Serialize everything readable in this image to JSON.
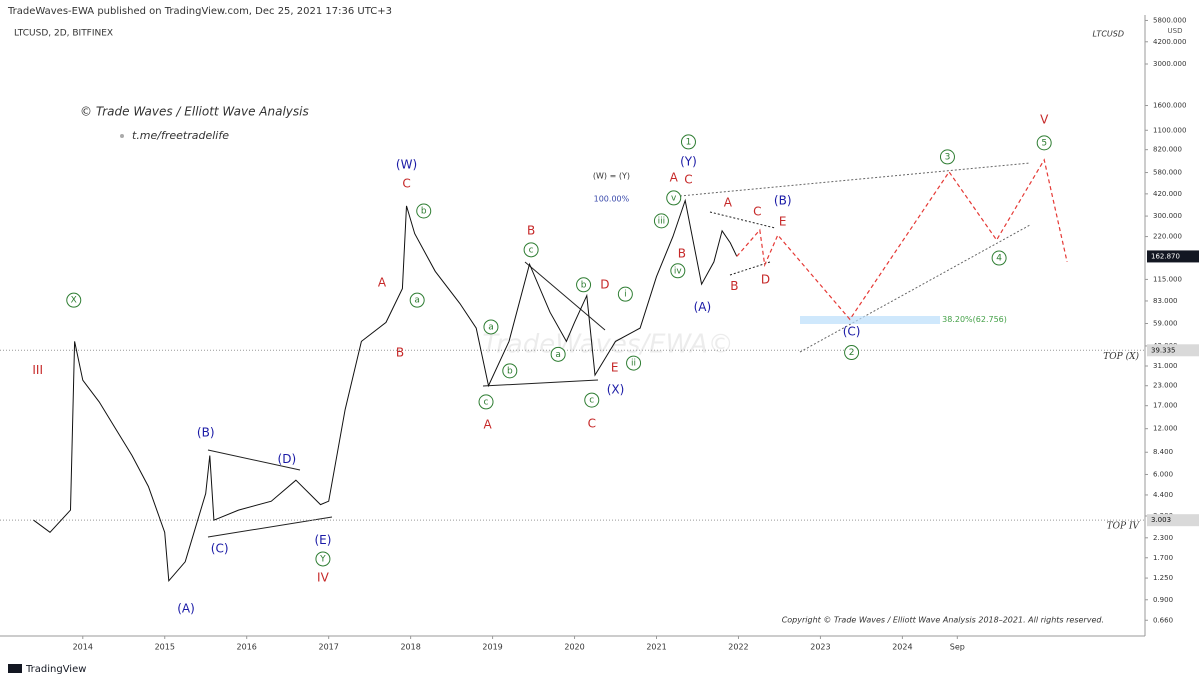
{
  "header": {
    "published": "TradeWaves-EWA published on TradingView.com, Dec 25, 2021 17:36 UTC+3",
    "footer_logo": "TradingView"
  },
  "chart_data": {
    "type": "line",
    "symbol": "LTCUSD, 2D, BITFINEX",
    "symbol_short": "LTCUSD",
    "unit": "USD",
    "credit": "© Trade Waves / Elliott Wave Analysis",
    "link": "t.me/freetradelife",
    "watermark": "TradeWaves/EWA©",
    "copyright": "Copyright © Trade Waves / Elliott Wave Analysis 2018–2021. All rights reserved.",
    "log_scale": true,
    "grid": false,
    "xlim": [
      2012.99,
      2026.96
    ],
    "xticks": [
      2014,
      2015,
      2016,
      2017,
      2018,
      2019,
      2020,
      2021,
      2022,
      2023,
      2024,
      {
        "value": 2024.67,
        "label": "Sep"
      }
    ],
    "ylim": [
      0.52,
      6300
    ],
    "yticks": [
      {
        "value": 5800,
        "label": "5800.000"
      },
      {
        "value": 4200,
        "label": "4200.000"
      },
      {
        "value": 3000,
        "label": "3000.000"
      },
      {
        "value": 1600,
        "label": "1600.000"
      },
      {
        "value": 1100,
        "label": "1100.000"
      },
      {
        "value": 820,
        "label": "820.000"
      },
      {
        "value": 580,
        "label": "580.000"
      },
      {
        "value": 420,
        "label": "420.000"
      },
      {
        "value": 300,
        "label": "300.000"
      },
      {
        "value": 220,
        "label": "220.000"
      },
      {
        "value": 115,
        "label": "115.000"
      },
      {
        "value": 83,
        "label": "83.000"
      },
      {
        "value": 59,
        "label": "59.000"
      },
      {
        "value": 42,
        "label": "42.000"
      },
      {
        "value": 31,
        "label": "31.000"
      },
      {
        "value": 23,
        "label": "23.000"
      },
      {
        "value": 17,
        "label": "17.000"
      },
      {
        "value": 12,
        "label": "12.000"
      },
      {
        "value": 8.4,
        "label": "8.400"
      },
      {
        "value": 6,
        "label": "6.000"
      },
      {
        "value": 4.4,
        "label": "4.400"
      },
      {
        "value": 3.2,
        "label": "3.200"
      },
      {
        "value": 2.3,
        "label": "2.300"
      },
      {
        "value": 1.7,
        "label": "1.700"
      },
      {
        "value": 1.25,
        "label": "1.250"
      },
      {
        "value": 0.9,
        "label": "0.900"
      },
      {
        "value": 0.66,
        "label": "0.660"
      }
    ],
    "series": [
      {
        "color": "#111111",
        "dash": false,
        "x": [
          2013.4,
          2013.6,
          2013.85,
          2013.9,
          2014.0,
          2014.2,
          2014.4,
          2014.6,
          2014.8,
          2015.0,
          2015.05,
          2015.25,
          2015.5,
          2015.55,
          2015.6,
          2015.9,
          2016.3,
          2016.6,
          2016.9,
          2017.0,
          2017.2,
          2017.4,
          2017.7,
          2017.9,
          2017.95,
          2018.05,
          2018.3,
          2018.6,
          2018.8,
          2018.95,
          2019.2,
          2019.45,
          2019.7,
          2019.9,
          2020.0,
          2020.15,
          2020.25,
          2020.5,
          2020.8,
          2021.0,
          2021.2,
          2021.35,
          2021.55,
          2021.7,
          2021.8,
          2021.9,
          2021.98
        ],
        "values": [
          3.0,
          2.5,
          3.5,
          45,
          25,
          18,
          12,
          8,
          5,
          2.5,
          1.2,
          1.6,
          4.5,
          8,
          3,
          3.5,
          4,
          5.5,
          3.8,
          4,
          16,
          45,
          60,
          100,
          350,
          230,
          130,
          80,
          55,
          23,
          45,
          145,
          70,
          45,
          60,
          90,
          27,
          45,
          55,
          120,
          220,
          380,
          107,
          150,
          240,
          200,
          162.87
        ]
      },
      {
        "color": "#e53935",
        "dash": true,
        "x": [
          2021.98,
          2022.26,
          2022.32,
          2022.48,
          2023.36,
          2024.57,
          2025.15,
          2025.73,
          2026.01
        ],
        "values": [
          162.87,
          243,
          143,
          225,
          62.756,
          586,
          209,
          703,
          150
        ]
      }
    ],
    "last_price": 162.87,
    "last_price_label": "162.870",
    "levels": [
      {
        "label": "TOP (X)",
        "value": 39.335
      },
      {
        "label": "TOP IV",
        "value": 3.003
      }
    ],
    "annotations": [
      {
        "text": "III",
        "x": 2013.45,
        "y": 29,
        "color": "#c62828",
        "circled": false
      },
      {
        "text": "X",
        "x": 2013.89,
        "y": 84,
        "color": "#2e7d32",
        "circled": true
      },
      {
        "text": "(A)",
        "x": 2015.26,
        "y": 0.78,
        "color": "#1a1aa6",
        "circled": false
      },
      {
        "text": "(B)",
        "x": 2015.5,
        "y": 11.2,
        "color": "#1a1aa6",
        "circled": false
      },
      {
        "text": "(C)",
        "x": 2015.67,
        "y": 1.94,
        "color": "#1a1aa6",
        "circled": false
      },
      {
        "text": "(D)",
        "x": 2016.49,
        "y": 7.5,
        "color": "#1a1aa6",
        "circled": false
      },
      {
        "text": "(E)",
        "x": 2016.93,
        "y": 2.2,
        "color": "#1a1aa6",
        "circled": false
      },
      {
        "text": "Y",
        "x": 2016.93,
        "y": 1.67,
        "color": "#2e7d32",
        "circled": true
      },
      {
        "text": "IV",
        "x": 2016.93,
        "y": 1.25,
        "color": "#c62828",
        "circled": false
      },
      {
        "text": "A",
        "x": 2017.65,
        "y": 109,
        "color": "#c62828",
        "circled": false
      },
      {
        "text": "B",
        "x": 2017.87,
        "y": 37.8,
        "color": "#c62828",
        "circled": false
      },
      {
        "text": "a",
        "x": 2018.08,
        "y": 84,
        "color": "#2e7d32",
        "circled": true
      },
      {
        "text": "b",
        "x": 2018.16,
        "y": 324,
        "color": "#2e7d32",
        "circled": true
      },
      {
        "text": "(W)",
        "x": 2017.95,
        "y": 652,
        "color": "#1a1aa6",
        "circled": false
      },
      {
        "text": "C",
        "x": 2017.95,
        "y": 489,
        "color": "#c62828",
        "circled": false
      },
      {
        "text": "a",
        "x": 2018.98,
        "y": 56,
        "color": "#2e7d32",
        "circled": true
      },
      {
        "text": "b",
        "x": 2019.21,
        "y": 28.8,
        "color": "#2e7d32",
        "circled": true
      },
      {
        "text": "c",
        "x": 2018.92,
        "y": 18,
        "color": "#2e7d32",
        "circled": true
      },
      {
        "text": "A",
        "x": 2018.94,
        "y": 12.7,
        "color": "#c62828",
        "circled": false
      },
      {
        "text": "B",
        "x": 2019.47,
        "y": 240,
        "color": "#c62828",
        "circled": false
      },
      {
        "text": "c",
        "x": 2019.47,
        "y": 180,
        "color": "#2e7d32",
        "circled": true
      },
      {
        "text": "a",
        "x": 2019.8,
        "y": 37,
        "color": "#2e7d32",
        "circled": true
      },
      {
        "text": "b",
        "x": 2020.11,
        "y": 106,
        "color": "#2e7d32",
        "circled": true
      },
      {
        "text": "D",
        "x": 2020.37,
        "y": 106,
        "color": "#c62828",
        "circled": false
      },
      {
        "text": "E",
        "x": 2020.49,
        "y": 30,
        "color": "#c62828",
        "circled": false
      },
      {
        "text": "c",
        "x": 2020.21,
        "y": 18.5,
        "color": "#2e7d32",
        "circled": true
      },
      {
        "text": "C",
        "x": 2020.21,
        "y": 12.9,
        "color": "#c62828",
        "circled": false
      },
      {
        "text": "(X)",
        "x": 2020.5,
        "y": 21.6,
        "color": "#1a1aa6",
        "circled": false
      },
      {
        "text": "i",
        "x": 2020.62,
        "y": 92,
        "color": "#2e7d32",
        "circled": true
      },
      {
        "text": "ii",
        "x": 2020.72,
        "y": 32.4,
        "color": "#2e7d32",
        "circled": true
      },
      {
        "text": "iii",
        "x": 2021.06,
        "y": 279,
        "color": "#2e7d32",
        "circled": true
      },
      {
        "text": "iv",
        "x": 2021.26,
        "y": 131,
        "color": "#2e7d32",
        "circled": true
      },
      {
        "text": "v",
        "x": 2021.21,
        "y": 395,
        "color": "#2e7d32",
        "circled": true
      },
      {
        "text": "A",
        "x": 2021.21,
        "y": 535,
        "color": "#c62828",
        "circled": false
      },
      {
        "text": "1",
        "x": 2021.39,
        "y": 922,
        "color": "#2e7d32",
        "circled": true
      },
      {
        "text": "(Y)",
        "x": 2021.39,
        "y": 682,
        "color": "#1a1aa6",
        "circled": false
      },
      {
        "text": "C",
        "x": 2021.39,
        "y": 519,
        "color": "#c62828",
        "circled": false
      },
      {
        "text": "B",
        "x": 2021.31,
        "y": 169,
        "color": "#c62828",
        "circled": false
      },
      {
        "text": "(A)",
        "x": 2021.56,
        "y": 75,
        "color": "#1a1aa6",
        "circled": false
      },
      {
        "text": "A",
        "x": 2021.87,
        "y": 366,
        "color": "#c62828",
        "circled": false
      },
      {
        "text": "B",
        "x": 2021.95,
        "y": 103,
        "color": "#c62828",
        "circled": false
      },
      {
        "text": "C",
        "x": 2022.23,
        "y": 320,
        "color": "#c62828",
        "circled": false
      },
      {
        "text": "(B)",
        "x": 2022.54,
        "y": 378,
        "color": "#1a1aa6",
        "circled": false
      },
      {
        "text": "E",
        "x": 2022.54,
        "y": 275,
        "color": "#c62828",
        "circled": false
      },
      {
        "text": "D",
        "x": 2022.33,
        "y": 114,
        "color": "#c62828",
        "circled": false
      },
      {
        "text": "(C)",
        "x": 2023.38,
        "y": 52,
        "color": "#1a1aa6",
        "circled": false
      },
      {
        "text": "2",
        "x": 2023.38,
        "y": 38,
        "color": "#2e7d32",
        "circled": true
      },
      {
        "text": "3",
        "x": 2024.55,
        "y": 735,
        "color": "#2e7d32",
        "circled": true
      },
      {
        "text": "4",
        "x": 2025.18,
        "y": 159,
        "color": "#2e7d32",
        "circled": true
      },
      {
        "text": "5",
        "x": 2025.73,
        "y": 909,
        "color": "#2e7d32",
        "circled": true
      },
      {
        "text": "V",
        "x": 2025.73,
        "y": 1288,
        "color": "#c62828",
        "circled": false
      },
      {
        "text": "(W) = (Y)",
        "x": 2020.45,
        "y": 551,
        "color": "#333333",
        "circled": false
      },
      {
        "text": "100.00%",
        "x": 2020.45,
        "y": 390,
        "color": "#3949ab",
        "circled": false
      },
      {
        "text": "38.20%(62.756)",
        "x": 2024.88,
        "y": 62.756,
        "color": "#43a047",
        "circled": false
      }
    ]
  }
}
